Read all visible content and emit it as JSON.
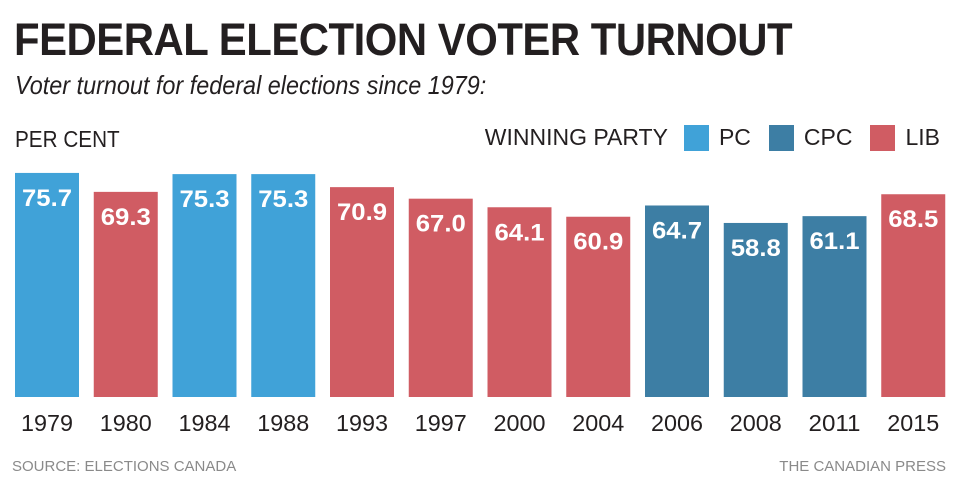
{
  "chart_data": {
    "type": "bar",
    "title": "FEDERAL ELECTION VOTER TURNOUT",
    "subtitle": "Voter turnout for federal elections since 1979:",
    "ylabel": "PER CENT",
    "xlabel": "",
    "ylim": [
      0,
      75.7
    ],
    "grid": false,
    "legend_title": "WINNING PARTY",
    "legend_placement": "top-right",
    "legend": [
      {
        "key": "PC",
        "label": "PC",
        "color": "#40a2d8"
      },
      {
        "key": "CPC",
        "label": "CPC",
        "color": "#3d7ea4"
      },
      {
        "key": "LIB",
        "label": "LIB",
        "color": "#d05c63"
      }
    ],
    "categories": [
      "1979",
      "1980",
      "1984",
      "1988",
      "1993",
      "1997",
      "2000",
      "2004",
      "2006",
      "2008",
      "2011",
      "2015"
    ],
    "values": [
      75.7,
      69.3,
      75.3,
      75.3,
      70.9,
      67.0,
      64.1,
      60.9,
      64.7,
      58.8,
      61.1,
      68.5
    ],
    "value_labels": [
      "75.7",
      "69.3",
      "75.3",
      "75.3",
      "70.9",
      "67.0",
      "64.1",
      "60.9",
      "64.7",
      "58.8",
      "61.1",
      "68.5"
    ],
    "party": [
      "PC",
      "LIB",
      "PC",
      "PC",
      "LIB",
      "LIB",
      "LIB",
      "LIB",
      "CPC",
      "CPC",
      "CPC",
      "LIB"
    ]
  },
  "footer": {
    "source": "SOURCE: ELECTIONS CANADA",
    "credit": "THE CANADIAN PRESS"
  }
}
